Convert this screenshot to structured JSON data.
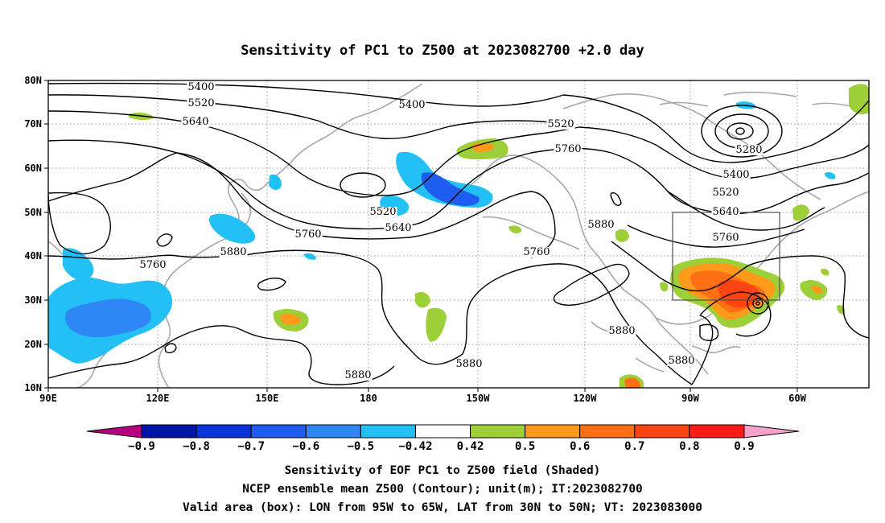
{
  "title": "Sensitivity of PC1 to Z500 at 2023082700 +2.0 day",
  "map": {
    "lon_labels": [
      "90E",
      "120E",
      "150E",
      "180",
      "150W",
      "120W",
      "90W",
      "60W"
    ],
    "lat_labels": [
      "80N",
      "70N",
      "60N",
      "50N",
      "40N",
      "30N",
      "20N",
      "10N"
    ]
  },
  "contour_labels": [
    {
      "text": "5400"
    },
    {
      "text": "5520"
    },
    {
      "text": "5640"
    },
    {
      "text": "5400"
    },
    {
      "text": "5520"
    },
    {
      "text": "5760"
    },
    {
      "text": "5520"
    },
    {
      "text": "5640"
    },
    {
      "text": "5280"
    },
    {
      "text": "5400"
    },
    {
      "text": "5520"
    },
    {
      "text": "5640"
    },
    {
      "text": "5760"
    },
    {
      "text": "5760"
    },
    {
      "text": "5880"
    },
    {
      "text": "5760"
    },
    {
      "text": "5880"
    },
    {
      "text": "5760"
    },
    {
      "text": "5880"
    },
    {
      "text": "5880"
    },
    {
      "text": "5880"
    },
    {
      "text": "5880"
    }
  ],
  "colorbar": {
    "labels": [
      "-0.9",
      "-0.8",
      "-0.7",
      "-0.6",
      "-0.5",
      "-0.42",
      "0.42",
      "0.5",
      "0.6",
      "0.7",
      "0.8",
      "0.9"
    ],
    "colors": [
      "#b5007f",
      "#0014a8",
      "#0a34d8",
      "#1f5cf0",
      "#2f86f5",
      "#22c0f5",
      "#ffffff",
      "#9ccf38",
      "#ff9a1a",
      "#ff6f14",
      "#ff4414",
      "#ff1a1a",
      "#f5a3c8"
    ]
  },
  "footer": {
    "line1": "Sensitivity of EOF PC1 to Z500 field (Shaded)",
    "line2": "NCEP ensemble mean Z500 (Contour); unit(m); IT:2023082700",
    "line3": "Valid area (box): LON from 95W to 65W, LAT from 30N to 50N; VT: 2023083000"
  }
}
